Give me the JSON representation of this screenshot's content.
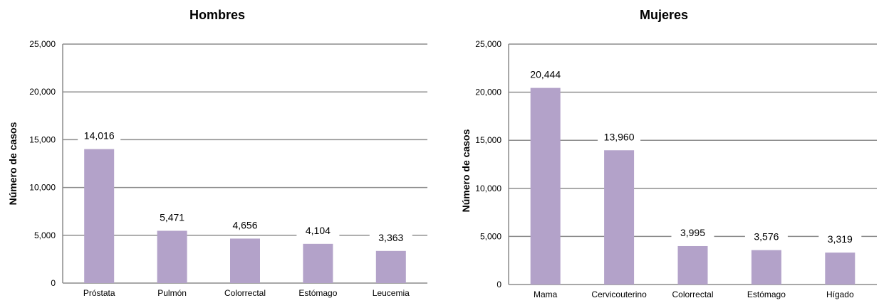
{
  "chart_data": [
    {
      "type": "bar",
      "title": "Hombres",
      "ylabel": "Número de casos",
      "categories": [
        "Próstata",
        "Pulmón",
        "Colorrectal",
        "Estómago",
        "Leucemia"
      ],
      "values": [
        14016,
        5471,
        4656,
        4104,
        3363
      ],
      "value_labels": [
        "14,016",
        "5,471",
        "4,656",
        "4,104",
        "3,363"
      ],
      "ylim": [
        0,
        25000
      ],
      "yticks": [
        0,
        5000,
        10000,
        15000,
        20000,
        25000
      ],
      "ytick_labels": [
        "0",
        "5,000",
        "10,000",
        "15,000",
        "20,000",
        "25,000"
      ],
      "grid": true,
      "bar_color": "#b3a2c9"
    },
    {
      "type": "bar",
      "title": "Mujeres",
      "ylabel": "Número de casos",
      "categories": [
        "Mama",
        "Cervicouterino",
        "Colorrectal",
        "Estómago",
        "Hígado"
      ],
      "values": [
        20444,
        13960,
        3995,
        3576,
        3319
      ],
      "value_labels": [
        "20,444",
        "13,960",
        "3,995",
        "3,576",
        "3,319"
      ],
      "ylim": [
        0,
        25000
      ],
      "yticks": [
        0,
        5000,
        10000,
        15000,
        20000,
        25000
      ],
      "ytick_labels": [
        "0",
        "5,000",
        "10,000",
        "15,000",
        "20,000",
        "25,000"
      ],
      "grid": true,
      "bar_color": "#b3a2c9"
    }
  ]
}
